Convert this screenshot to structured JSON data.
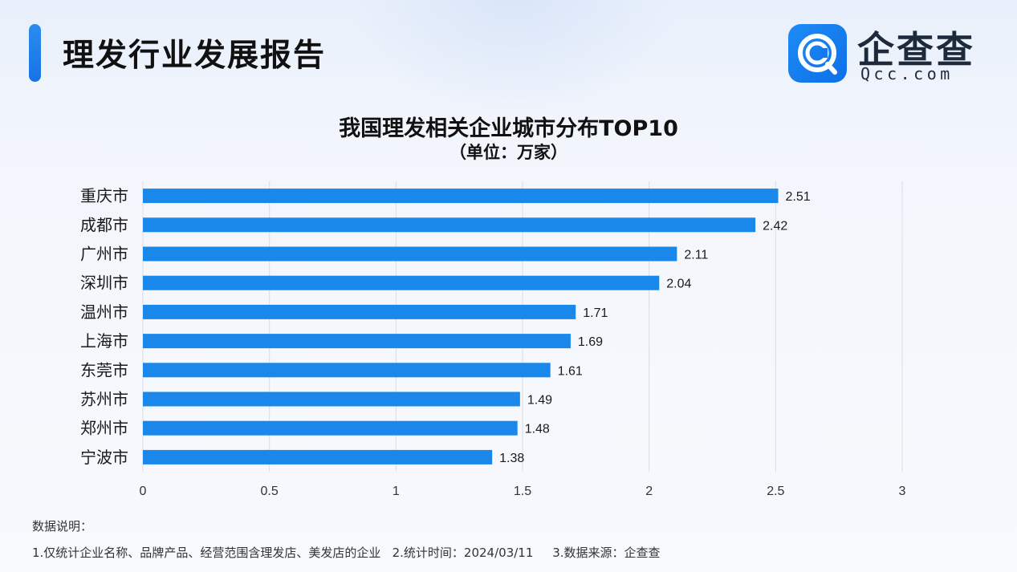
{
  "header": {
    "title": "理发行业发展报告",
    "logo_text": "企查查",
    "logo_url": "Qcc.com"
  },
  "colors": {
    "bar": "#1a87ea",
    "accent": "#1f7fed",
    "gridline": "#dadde3"
  },
  "chart_data": {
    "type": "bar",
    "orientation": "horizontal",
    "title": "我国理发相关企业城市分布TOP10",
    "subtitle": "（单位：万家）",
    "categories": [
      "重庆市",
      "成都市",
      "广州市",
      "深圳市",
      "温州市",
      "上海市",
      "东莞市",
      "苏州市",
      "郑州市",
      "宁波市"
    ],
    "values": [
      2.51,
      2.42,
      2.11,
      2.04,
      1.71,
      1.69,
      1.61,
      1.49,
      1.48,
      1.38
    ],
    "value_labels": [
      "2.51",
      "2.42",
      "2.11",
      "2.04",
      "1.71",
      "1.69",
      "1.61",
      "1.49",
      "1.48",
      "1.38"
    ],
    "xlim": [
      0,
      3
    ],
    "xticks": [
      "0",
      "0.5",
      "1",
      "1.5",
      "2",
      "2.5",
      "3"
    ],
    "grid": true,
    "legend": "none"
  },
  "notes": {
    "heading": "数据说明：",
    "text": "1.仅统计企业名称、品牌产品、经营范围含理发店、美发店的企业   2.统计时间：2024/03/11     3.数据来源：企查查"
  }
}
